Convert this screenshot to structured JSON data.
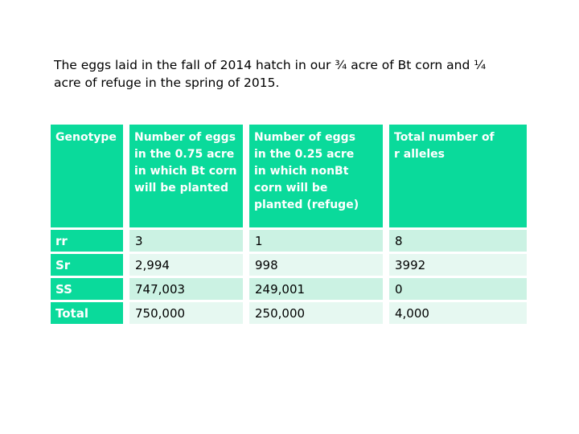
{
  "intro": {
    "text": "The eggs laid in the fall of 2014 hatch in our ¾ acre of Bt corn and ¼\nacre of refuge in the spring of 2015."
  },
  "table": {
    "colors": {
      "header_green": "#0ada9b",
      "row_mint": "#cbf2e3",
      "row_light_mint": "#e6f8f1",
      "header_text": "#ffffff",
      "body_text": "#000000"
    },
    "headers": {
      "genotype": "Genotype",
      "bt_eggs": "Number of eggs\nin the 0.75 acre\nin which Bt corn\nwill be planted",
      "nonbt_eggs": "Number of eggs\nin the 0.25 acre\nin which nonBt\ncorn will be\nplanted (refuge)",
      "r_alleles": "Total number of\nr alleles"
    },
    "rows": [
      {
        "label": "rr",
        "values": [
          "3",
          "1",
          "8"
        ]
      },
      {
        "label": "Sr",
        "values": [
          "2,994",
          "998",
          "3992"
        ]
      },
      {
        "label": "SS",
        "values": [
          "747,003",
          "249,001",
          "0"
        ]
      },
      {
        "label": "Total",
        "values": [
          "750,000",
          "250,000",
          "4,000"
        ]
      }
    ]
  }
}
